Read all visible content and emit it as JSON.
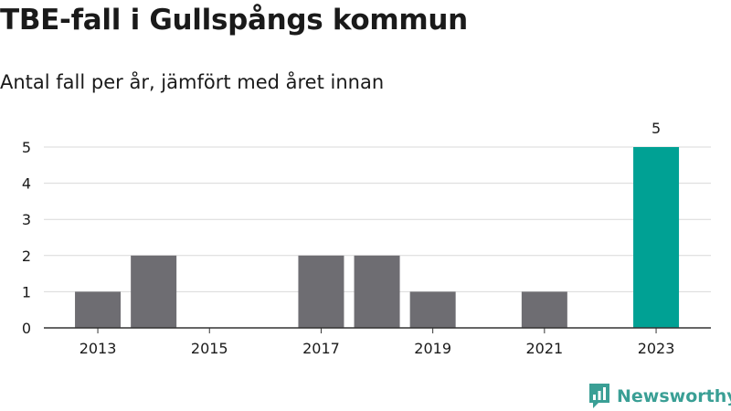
{
  "brand": {
    "name": "Newsworthy",
    "color": "#3a9f95"
  },
  "chart_data": {
    "type": "bar",
    "title": "TBE-fall i Gullspångs kommun",
    "subtitle": "Antal fall per år, jämfört med året innan",
    "categories": [
      2013,
      2014,
      2015,
      2016,
      2017,
      2018,
      2019,
      2020,
      2021,
      2022,
      2023
    ],
    "values": [
      1,
      2,
      0,
      0,
      2,
      2,
      1,
      0,
      1,
      0,
      5
    ],
    "x_tick_labels": [
      "2013",
      "2015",
      "2017",
      "2019",
      "2021",
      "2023"
    ],
    "y_ticks": [
      0,
      1,
      2,
      3,
      4,
      5
    ],
    "ylim": [
      0,
      5
    ],
    "grid": true,
    "highlight": {
      "category": 2023,
      "data_label": "5"
    },
    "colors": {
      "default_bar": "#6e6d72",
      "highlight_bar": "#00a194",
      "grid": "#d9d9d9",
      "axis": "#333333"
    }
  }
}
